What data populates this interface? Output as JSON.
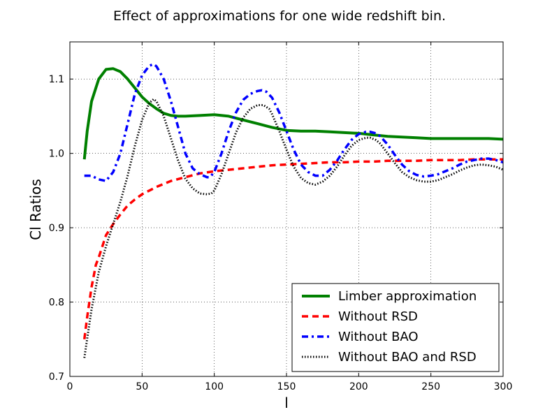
{
  "chart_data": {
    "type": "line",
    "title": "Effect of approximations for one wide redshift bin.",
    "xlabel": "l",
    "ylabel": "Cl Ratios",
    "xlim": [
      0,
      300
    ],
    "ylim": [
      0.7,
      1.15
    ],
    "xticks": [
      0,
      50,
      100,
      150,
      200,
      250,
      300
    ],
    "xtick_labels": [
      "0",
      "50",
      "100",
      "150",
      "200",
      "250",
      "300"
    ],
    "yticks": [
      0.7,
      0.8,
      0.9,
      1.0,
      1.1
    ],
    "ytick_labels": [
      "0.7",
      "0.8",
      "0.9",
      "1.0",
      "1.1"
    ],
    "grid": true,
    "legend_position": "bottom-right",
    "series": [
      {
        "name": "Limber approximation",
        "color": "#008000",
        "style": "solid",
        "x": [
          10,
          12,
          15,
          20,
          25,
          30,
          35,
          40,
          45,
          50,
          55,
          60,
          65,
          70,
          75,
          80,
          90,
          100,
          110,
          120,
          130,
          140,
          150,
          160,
          170,
          180,
          190,
          200,
          210,
          220,
          230,
          240,
          250,
          260,
          270,
          280,
          290,
          300
        ],
        "y": [
          0.992,
          1.03,
          1.07,
          1.1,
          1.113,
          1.114,
          1.11,
          1.1,
          1.088,
          1.076,
          1.067,
          1.06,
          1.054,
          1.051,
          1.05,
          1.05,
          1.051,
          1.052,
          1.05,
          1.045,
          1.04,
          1.035,
          1.031,
          1.03,
          1.03,
          1.029,
          1.028,
          1.027,
          1.025,
          1.023,
          1.022,
          1.021,
          1.02,
          1.02,
          1.02,
          1.02,
          1.02,
          1.019
        ]
      },
      {
        "name": "Without RSD",
        "color": "#ff0000",
        "style": "dashed",
        "x": [
          10,
          12,
          15,
          18,
          20,
          25,
          30,
          35,
          40,
          45,
          50,
          55,
          60,
          70,
          80,
          90,
          100,
          110,
          120,
          130,
          140,
          150,
          160,
          170,
          180,
          190,
          200,
          210,
          220,
          230,
          240,
          250,
          260,
          270,
          280,
          290,
          300
        ],
        "y": [
          0.75,
          0.78,
          0.82,
          0.85,
          0.86,
          0.89,
          0.905,
          0.918,
          0.93,
          0.938,
          0.945,
          0.95,
          0.955,
          0.963,
          0.968,
          0.973,
          0.976,
          0.978,
          0.98,
          0.982,
          0.984,
          0.985,
          0.986,
          0.987,
          0.988,
          0.988,
          0.989,
          0.989,
          0.99,
          0.99,
          0.99,
          0.991,
          0.991,
          0.991,
          0.992,
          0.992,
          0.992
        ]
      },
      {
        "name": "Without BAO",
        "color": "#0000ff",
        "style": "dashdot",
        "x": [
          10,
          15,
          20,
          25,
          30,
          35,
          40,
          45,
          50,
          55,
          58,
          60,
          65,
          70,
          75,
          80,
          85,
          90,
          95,
          97,
          100,
          105,
          110,
          115,
          120,
          125,
          130,
          133,
          136,
          140,
          145,
          150,
          155,
          160,
          165,
          170,
          175,
          180,
          185,
          190,
          195,
          200,
          205,
          208,
          212,
          215,
          220,
          225,
          230,
          235,
          240,
          245,
          250,
          255,
          260,
          265,
          270,
          275,
          280,
          285,
          290,
          295,
          300
        ],
        "y": [
          0.97,
          0.97,
          0.965,
          0.963,
          0.975,
          1.0,
          1.04,
          1.08,
          1.105,
          1.118,
          1.12,
          1.117,
          1.1,
          1.07,
          1.035,
          1.0,
          0.98,
          0.972,
          0.968,
          0.968,
          0.975,
          1.0,
          1.03,
          1.055,
          1.072,
          1.08,
          1.084,
          1.085,
          1.083,
          1.075,
          1.055,
          1.03,
          1.005,
          0.985,
          0.975,
          0.97,
          0.97,
          0.978,
          0.99,
          1.005,
          1.018,
          1.026,
          1.029,
          1.029,
          1.027,
          1.023,
          1.012,
          0.998,
          0.985,
          0.976,
          0.971,
          0.969,
          0.97,
          0.972,
          0.976,
          0.98,
          0.985,
          0.989,
          0.991,
          0.993,
          0.993,
          0.991,
          0.988
        ]
      },
      {
        "name": "Without BAO and RSD",
        "color": "#000000",
        "style": "dotted",
        "x": [
          10,
          15,
          20,
          25,
          30,
          35,
          40,
          45,
          50,
          55,
          58,
          60,
          65,
          70,
          75,
          80,
          85,
          90,
          95,
          98,
          100,
          105,
          110,
          115,
          120,
          125,
          130,
          134,
          138,
          140,
          145,
          150,
          155,
          160,
          165,
          170,
          175,
          180,
          185,
          190,
          195,
          200,
          205,
          208,
          212,
          215,
          220,
          225,
          230,
          235,
          240,
          245,
          250,
          255,
          260,
          265,
          270,
          275,
          280,
          285,
          290,
          295,
          300
        ],
        "y": [
          0.725,
          0.79,
          0.84,
          0.875,
          0.905,
          0.935,
          0.97,
          1.01,
          1.045,
          1.068,
          1.073,
          1.07,
          1.05,
          1.02,
          0.99,
          0.966,
          0.953,
          0.946,
          0.945,
          0.946,
          0.95,
          0.972,
          1.0,
          1.028,
          1.048,
          1.06,
          1.065,
          1.065,
          1.06,
          1.053,
          1.03,
          1.005,
          0.982,
          0.967,
          0.96,
          0.958,
          0.962,
          0.97,
          0.982,
          0.997,
          1.01,
          1.018,
          1.021,
          1.021,
          1.018,
          1.013,
          1.0,
          0.987,
          0.975,
          0.968,
          0.964,
          0.962,
          0.962,
          0.964,
          0.968,
          0.972,
          0.977,
          0.981,
          0.984,
          0.985,
          0.984,
          0.982,
          0.978
        ]
      }
    ]
  }
}
